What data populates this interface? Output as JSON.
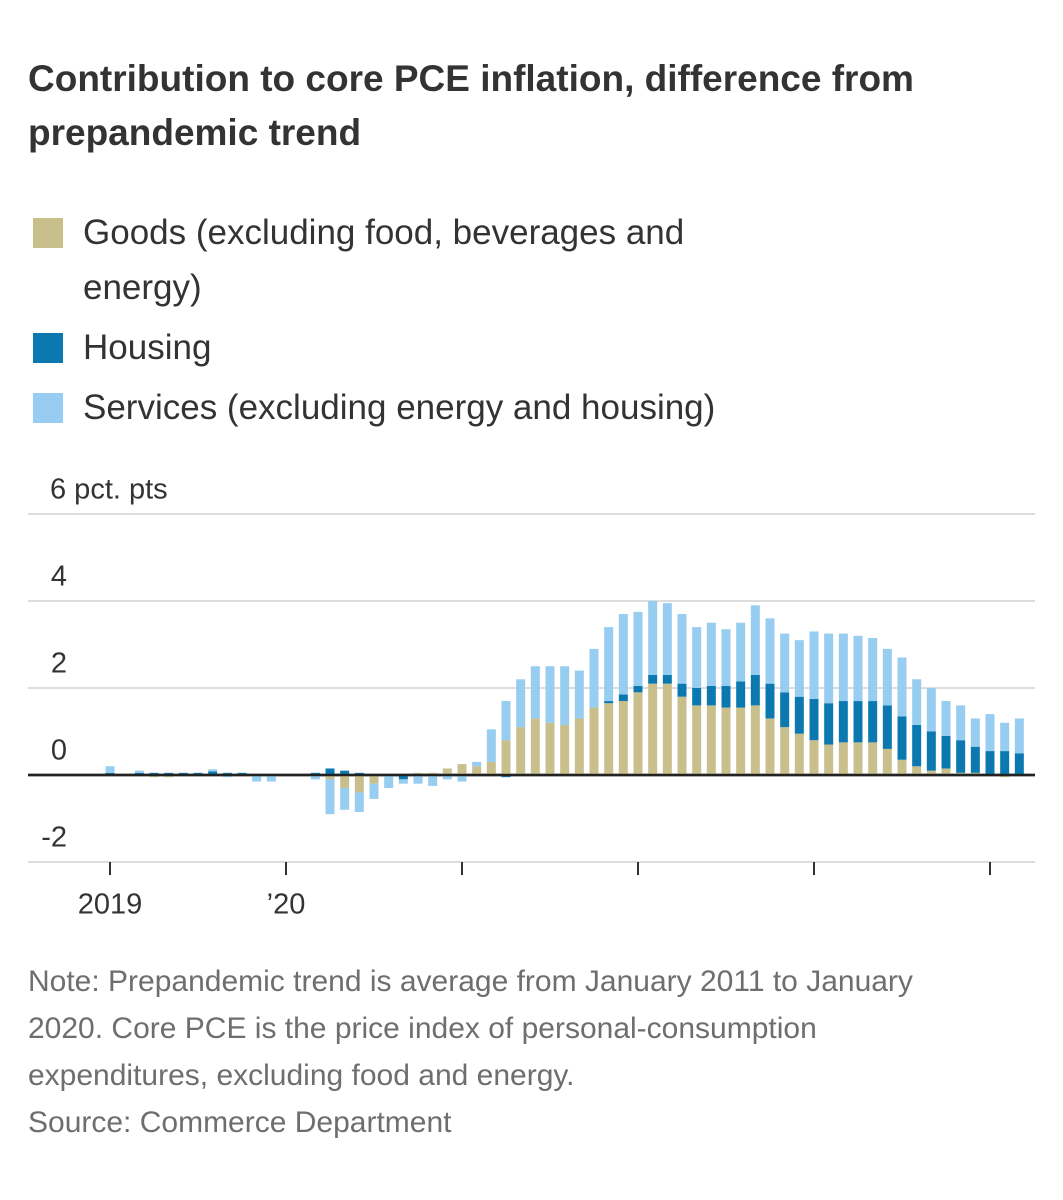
{
  "chart_data": {
    "type": "stacked_bar",
    "title": "Contribution to core PCE inflation, difference from prepandemic trend",
    "categories": [
      "2019",
      null,
      null,
      null,
      null,
      null,
      null,
      null,
      null,
      null,
      null,
      null,
      "’20",
      null,
      null,
      null,
      null,
      null,
      null,
      null,
      null,
      null,
      null,
      null,
      null,
      null,
      null,
      null,
      null,
      null,
      null,
      null,
      null,
      null,
      null,
      null,
      null,
      null,
      null,
      null,
      null,
      null,
      null,
      null,
      null,
      null,
      null,
      null,
      null,
      null,
      null,
      null,
      null,
      null,
      null,
      null,
      null,
      null,
      null,
      null,
      null,
      null,
      null
    ],
    "xticks": [
      0,
      12,
      24,
      36,
      48,
      60
    ],
    "series": [
      {
        "name": "Goods (excluding food, beverages and energy)",
        "color": "#c8bf8c",
        "values": [
          0,
          0,
          0,
          -0.05,
          -0.05,
          0,
          0,
          0,
          0,
          0,
          0,
          0,
          0,
          0,
          0,
          -0.1,
          -0.3,
          -0.4,
          -0.2,
          0,
          0,
          0.05,
          0.05,
          0.15,
          0.25,
          0.2,
          0.3,
          0.8,
          1.1,
          1.3,
          1.2,
          1.15,
          1.3,
          1.55,
          1.65,
          1.7,
          1.9,
          2.1,
          2.1,
          1.8,
          1.6,
          1.6,
          1.55,
          1.55,
          1.6,
          1.3,
          1.1,
          0.95,
          0.8,
          0.7,
          0.75,
          0.75,
          0.75,
          0.6,
          0.35,
          0.2,
          0.1,
          0.15,
          0.05,
          0.05,
          0,
          -0.05,
          0
        ]
      },
      {
        "name": "Housing",
        "color": "#0b79b0",
        "values": [
          0.05,
          0,
          0.05,
          0.05,
          0.05,
          0.05,
          0.05,
          0.08,
          0.05,
          0.05,
          0,
          0,
          0,
          0,
          0.05,
          0.15,
          0.1,
          0.05,
          0,
          0,
          -0.1,
          0,
          0,
          0,
          0,
          0,
          0,
          -0.05,
          0,
          0,
          0,
          0,
          0,
          0,
          0.05,
          0.15,
          0.15,
          0.2,
          0.2,
          0.3,
          0.4,
          0.45,
          0.5,
          0.6,
          0.7,
          0.8,
          0.8,
          0.85,
          0.95,
          0.95,
          0.95,
          0.95,
          0.95,
          1.0,
          1.0,
          0.95,
          0.9,
          0.75,
          0.75,
          0.6,
          0.55,
          0.55,
          0.5
        ]
      },
      {
        "name": "Services (excluding energy and housing)",
        "color": "#96cdf0",
        "values": [
          0.15,
          0,
          0.05,
          0,
          0,
          0,
          0,
          0.05,
          -0.05,
          0,
          -0.15,
          -0.15,
          0,
          0,
          -0.1,
          -0.8,
          -0.5,
          -0.45,
          -0.35,
          -0.3,
          -0.1,
          -0.2,
          -0.25,
          -0.1,
          -0.15,
          0.1,
          0.75,
          0.9,
          1.1,
          1.2,
          1.3,
          1.35,
          1.1,
          1.35,
          1.7,
          1.85,
          1.7,
          1.7,
          1.65,
          1.6,
          1.4,
          1.45,
          1.3,
          1.35,
          1.6,
          1.5,
          1.35,
          1.3,
          1.55,
          1.6,
          1.55,
          1.5,
          1.45,
          1.3,
          1.35,
          1.05,
          1.0,
          0.8,
          0.8,
          0.65,
          0.85,
          0.65,
          0.8
        ]
      }
    ],
    "ylim": [
      -2,
      6
    ],
    "yticks": [
      -2,
      0,
      2,
      4,
      {
        "value": 6,
        "label": "6 pct. pts"
      }
    ],
    "grid": true,
    "note": [
      "Note: Prepandemic trend is average from January 2011 to January",
      "2020. Core PCE is the price index of personal-consumption",
      "expenditures, excluding food and energy."
    ],
    "source": "Source: Commerce Department"
  }
}
